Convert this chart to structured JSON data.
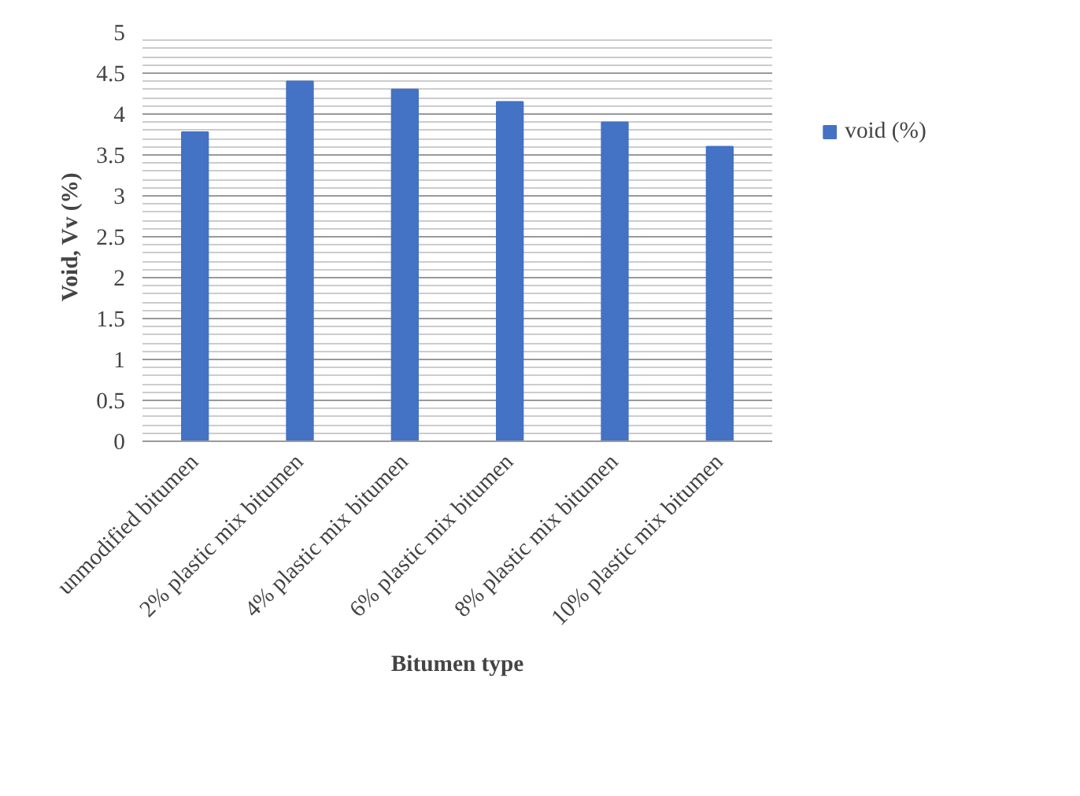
{
  "chart_data": {
    "type": "bar",
    "xlabel": "Bitumen type",
    "ylabel": "Void, Vv (%)",
    "categories": [
      "unmodified bitumen",
      "2% plastic mix bitumen",
      "4% plastic mix bitumen",
      "6% plastic mix bitumen",
      "8% plastic mix bitumen",
      "10% plastic mix bitumen"
    ],
    "series": [
      {
        "name": "void (%)",
        "color": "#4472c4",
        "values": [
          3.78,
          4.4,
          4.3,
          4.15,
          3.9,
          3.6
        ]
      }
    ],
    "ylim": [
      0,
      5
    ],
    "yticks": [
      0,
      0.5,
      1,
      1.5,
      2,
      2.5,
      3,
      3.5,
      4,
      4.5,
      5
    ],
    "grid": "y",
    "legend": "right"
  }
}
